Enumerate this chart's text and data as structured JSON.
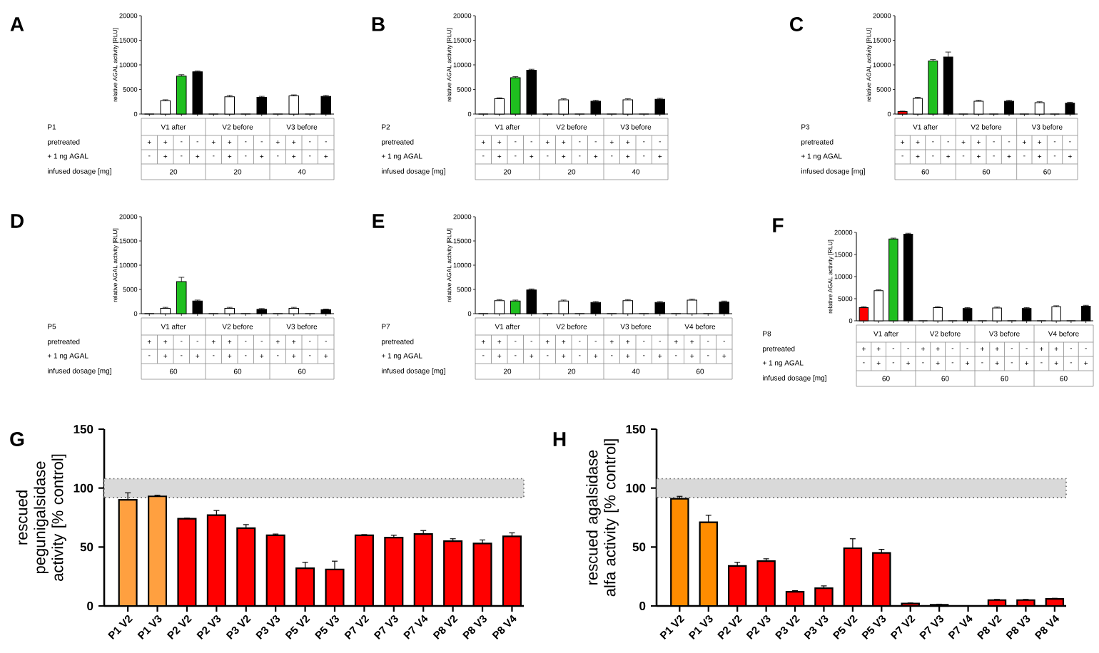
{
  "chart_data": [
    {
      "type": "bar",
      "title": "A",
      "ylabel": "relative AGAL activity [RLU]",
      "categories": [
        null,
        null,
        null,
        null,
        null,
        null,
        null,
        null,
        null,
        null,
        null,
        null
      ],
      "values": [
        0,
        2700,
        7700,
        8600,
        0,
        3500,
        0,
        3400,
        0,
        3700,
        0,
        3600
      ],
      "colors": [
        "#ff0000",
        "#ffffff",
        "#1fbf1f",
        "#000000",
        "#ff0000",
        "#ffffff",
        "#1fbf1f",
        "#000000",
        "#ff0000",
        "#ffffff",
        "#1fbf1f",
        "#000000"
      ],
      "errors": [
        null,
        200,
        300,
        150,
        null,
        300,
        null,
        200,
        null,
        200,
        null,
        200
      ],
      "ylim": [
        0,
        20000
      ],
      "yticks": [
        0,
        5000,
        10000,
        15000,
        20000
      ],
      "annotations": [
        "P1",
        "pretreated",
        "+ 1 ng AGAL",
        "infused dosage [mg]",
        "V1 after",
        "V2 before",
        "V3 before",
        "20",
        "20",
        "40",
        "+",
        "+",
        "-",
        "-",
        "+",
        "+",
        "-",
        "-",
        "+",
        "+",
        "-",
        "-",
        "-",
        "+",
        "-",
        "+",
        "-",
        "+",
        "-",
        "+",
        "-",
        "+",
        "-",
        "+"
      ]
    },
    {
      "type": "bar",
      "title": "B",
      "ylabel": "relative AGAL activity [RLU]",
      "categories": [
        null,
        null,
        null,
        null,
        null,
        null,
        null,
        null,
        null,
        null,
        null,
        null
      ],
      "values": [
        0,
        3100,
        7400,
        8900,
        0,
        2900,
        0,
        2600,
        0,
        2900,
        0,
        3000
      ],
      "colors": [
        "#ff0000",
        "#ffffff",
        "#1fbf1f",
        "#000000",
        "#ff0000",
        "#ffffff",
        "#1fbf1f",
        "#000000",
        "#ff0000",
        "#ffffff",
        "#1fbf1f",
        "#000000"
      ],
      "errors": [
        null,
        200,
        200,
        200,
        null,
        200,
        null,
        200,
        null,
        200,
        null,
        200
      ],
      "ylim": [
        0,
        20000
      ],
      "yticks": [
        0,
        5000,
        10000,
        15000,
        20000
      ],
      "annotations": [
        "P2",
        "pretreated",
        "+ 1 ng AGAL",
        "infused dosage [mg]",
        "V1 after",
        "V2 before",
        "V3 before",
        "20",
        "20",
        "40",
        "+",
        "+",
        "-",
        "-",
        "+",
        "+",
        "-",
        "-",
        "+",
        "+",
        "-",
        "-",
        "-",
        "+",
        "-",
        "+",
        "-",
        "+",
        "-",
        "+",
        "-",
        "+",
        "-",
        "+"
      ]
    },
    {
      "type": "bar",
      "title": "C",
      "ylabel": "relative AGAL activity [RLU]",
      "categories": [
        null,
        null,
        null,
        null,
        null,
        null,
        null,
        null,
        null,
        null,
        null,
        null
      ],
      "values": [
        500,
        3200,
        10800,
        11600,
        0,
        2600,
        0,
        2600,
        0,
        2300,
        0,
        2200
      ],
      "colors": [
        "#ff0000",
        "#ffffff",
        "#1fbf1f",
        "#000000",
        "#ff0000",
        "#ffffff",
        "#1fbf1f",
        "#000000",
        "#ff0000",
        "#ffffff",
        "#1fbf1f",
        "#000000"
      ],
      "errors": [
        100,
        200,
        300,
        1000,
        null,
        200,
        null,
        200,
        null,
        200,
        null,
        200
      ],
      "ylim": [
        0,
        20000
      ],
      "yticks": [
        0,
        5000,
        10000,
        15000,
        20000
      ],
      "annotations": [
        "P3",
        "pretreated",
        "+ 1 ng AGAL",
        "infused dosage [mg]",
        "V1 after",
        "V2 before",
        "V3 before",
        "60",
        "60",
        "60",
        "+",
        "+",
        "-",
        "-",
        "+",
        "+",
        "-",
        "-",
        "+",
        "+",
        "-",
        "-",
        "-",
        "+",
        "-",
        "+",
        "-",
        "+",
        "-",
        "+",
        "-",
        "+",
        "-",
        "+"
      ]
    },
    {
      "type": "bar",
      "title": "D",
      "ylabel": "relative AGAL activity [RLU]",
      "categories": [
        null,
        null,
        null,
        null,
        null,
        null,
        null,
        null,
        null,
        null,
        null,
        null
      ],
      "values": [
        0,
        1100,
        6600,
        2600,
        0,
        1100,
        0,
        900,
        0,
        1100,
        0,
        800
      ],
      "colors": [
        "#ff0000",
        "#ffffff",
        "#1fbf1f",
        "#000000",
        "#ff0000",
        "#ffffff",
        "#1fbf1f",
        "#000000",
        "#ff0000",
        "#ffffff",
        "#1fbf1f",
        "#000000"
      ],
      "errors": [
        null,
        200,
        900,
        200,
        null,
        200,
        null,
        150,
        null,
        200,
        null,
        150
      ],
      "ylim": [
        0,
        20000
      ],
      "yticks": [
        0,
        5000,
        10000,
        15000,
        20000
      ],
      "annotations": [
        "P5",
        "pretreated",
        "+ 1 ng AGAL",
        "infused dosage [mg]",
        "V1 after",
        "V2 before",
        "V3 before",
        "60",
        "60",
        "60",
        "+",
        "+",
        "-",
        "-",
        "+",
        "+",
        "-",
        "-",
        "+",
        "+",
        "-",
        "-",
        "-",
        "+",
        "-",
        "+",
        "-",
        "+",
        "-",
        "+",
        "-",
        "+",
        "-",
        "+"
      ]
    },
    {
      "type": "bar",
      "title": "E",
      "ylabel": "relative AGAL activity [RLU]",
      "categories": [
        null,
        null,
        null,
        null,
        null,
        null,
        null,
        null,
        null,
        null,
        null,
        null,
        null,
        null,
        null,
        null
      ],
      "values": [
        0,
        2700,
        2600,
        4900,
        0,
        2600,
        0,
        2300,
        0,
        2700,
        0,
        2300,
        0,
        2800,
        0,
        2400
      ],
      "colors": [
        "#ff0000",
        "#ffffff",
        "#1fbf1f",
        "#000000",
        "#ff0000",
        "#ffffff",
        "#1fbf1f",
        "#000000",
        "#ff0000",
        "#ffffff",
        "#1fbf1f",
        "#000000",
        "#ff0000",
        "#ffffff",
        "#1fbf1f",
        "#000000"
      ],
      "errors": [
        null,
        200,
        200,
        200,
        null,
        200,
        null,
        200,
        null,
        200,
        null,
        200,
        null,
        200,
        null,
        200
      ],
      "ylim": [
        0,
        20000
      ],
      "yticks": [
        0,
        5000,
        10000,
        15000,
        20000
      ],
      "annotations": [
        "P7",
        "pretreated",
        "+ 1 ng AGAL",
        "infused dosage [mg]",
        "V1 after",
        "V2 before",
        "V3 before",
        "V4 before",
        "20",
        "20",
        "40",
        "60",
        "+",
        "+",
        "-",
        "-",
        "+",
        "+",
        "-",
        "-",
        "+",
        "+",
        "-",
        "-",
        "+",
        "+",
        "-",
        "-",
        "-",
        "+",
        "-",
        "+",
        "-",
        "+",
        "-",
        "+",
        "-",
        "+",
        "-",
        "+",
        "-",
        "+",
        "-",
        "+"
      ]
    },
    {
      "type": "bar",
      "title": "F",
      "ylabel": "relative AGAL activity [RLU]",
      "categories": [
        null,
        null,
        null,
        null,
        null,
        null,
        null,
        null,
        null,
        null,
        null,
        null,
        null,
        null,
        null,
        null
      ],
      "values": [
        3000,
        6800,
        18500,
        19600,
        0,
        3000,
        0,
        2800,
        0,
        2900,
        0,
        2800,
        0,
        3200,
        0,
        3300
      ],
      "colors": [
        "#ff0000",
        "#ffffff",
        "#1fbf1f",
        "#000000",
        "#ff0000",
        "#ffffff",
        "#1fbf1f",
        "#000000",
        "#ff0000",
        "#ffffff",
        "#1fbf1f",
        "#000000",
        "#ff0000",
        "#ffffff",
        "#1fbf1f",
        "#000000"
      ],
      "errors": [
        200,
        200,
        200,
        200,
        null,
        200,
        null,
        200,
        null,
        200,
        null,
        200,
        null,
        200,
        null,
        200
      ],
      "ylim": [
        0,
        20000
      ],
      "yticks": [
        0,
        5000,
        10000,
        15000,
        20000
      ],
      "annotations": [
        "P8",
        "pretreated",
        "+ 1 ng AGAL",
        "infused dosage [mg]",
        "V1 after",
        "V2 before",
        "V3 before",
        "V4 before",
        "60",
        "60",
        "60",
        "60",
        "+",
        "+",
        "-",
        "-",
        "+",
        "+",
        "-",
        "-",
        "+",
        "+",
        "-",
        "-",
        "+",
        "+",
        "-",
        "-",
        "-",
        "+",
        "-",
        "+",
        "-",
        "+",
        "-",
        "+",
        "-",
        "+",
        "-",
        "+",
        "-",
        "+",
        "-",
        "+"
      ]
    },
    {
      "type": "bar",
      "title": "G",
      "ylabel": "rescued pegunigalsidase activity [% control]",
      "categories": [
        "P1 V2",
        "P1 V3",
        "P2 V2",
        "P2 V3",
        "P3 V2",
        "P3 V3",
        "P5 V2",
        "P5 V3",
        "P7 V2",
        "P7 V3",
        "P7 V4",
        "P8 V2",
        "P8 V3",
        "P8 V4"
      ],
      "values": [
        90,
        93,
        74,
        77,
        66,
        60,
        32,
        31,
        60,
        58,
        61,
        55,
        53,
        59
      ],
      "errors": [
        6,
        1,
        0.5,
        4,
        3,
        1,
        5,
        7,
        0.5,
        2,
        3,
        2,
        3,
        3
      ],
      "colors": [
        "#ffa040",
        "#ffa040",
        "#ff0000",
        "#ff0000",
        "#ff0000",
        "#ff0000",
        "#ff0000",
        "#ff0000",
        "#ff0000",
        "#ff0000",
        "#ff0000",
        "#ff0000",
        "#ff0000",
        "#ff0000"
      ],
      "ylim": [
        0,
        150
      ],
      "yticks": [
        0,
        50,
        100,
        150
      ],
      "bands": [
        {
          "axis": "y",
          "from": 92,
          "to": 108,
          "color": "#d9d9d9"
        }
      ]
    },
    {
      "type": "bar",
      "title": "H",
      "ylabel": "rescued agalsidase alfa activity [% control]",
      "categories": [
        "P1 V2",
        "P1 V3",
        "P2 V2",
        "P2 V3",
        "P3 V2",
        "P3 V3",
        "P5 V2",
        "P5 V3",
        "P7 V2",
        "P7 V3",
        "P7 V4",
        "P8 V2",
        "P8 V3",
        "P8 V4"
      ],
      "values": [
        91,
        71,
        34,
        38,
        12,
        15,
        49,
        45,
        2,
        1,
        0,
        5,
        5,
        6
      ],
      "errors": [
        2,
        6,
        3,
        2,
        1,
        2,
        8,
        3,
        0.5,
        0.5,
        null,
        0.5,
        0.5,
        0.5
      ],
      "colors": [
        "#ff8c00",
        "#ff8c00",
        "#ff0000",
        "#ff0000",
        "#ff0000",
        "#ff0000",
        "#ff0000",
        "#ff0000",
        "#ff0000",
        "#ff0000",
        "#ff0000",
        "#ff0000",
        "#ff0000",
        "#ff0000"
      ],
      "ylim": [
        0,
        150
      ],
      "yticks": [
        0,
        50,
        100,
        150
      ],
      "bands": [
        {
          "axis": "y",
          "from": 92,
          "to": 108,
          "color": "#d9d9d9"
        }
      ]
    }
  ]
}
